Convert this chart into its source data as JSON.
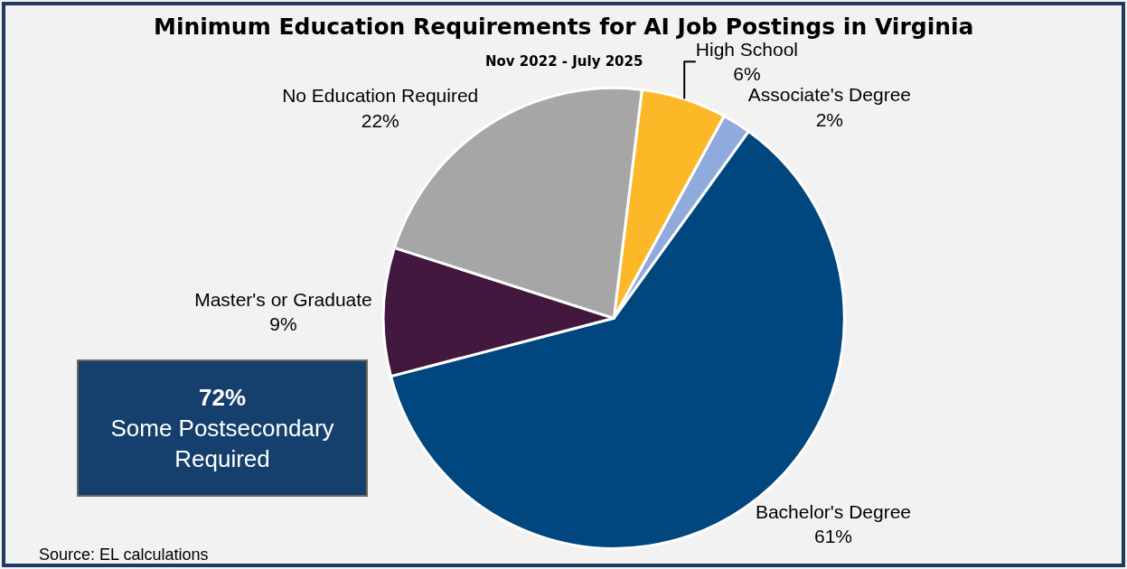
{
  "chart_data": {
    "type": "pie",
    "title": "Minimum Education Requirements for AI Job Postings in Virginia",
    "subtitle": "Nov 2022 - July 2025",
    "categories": [
      "High School",
      "Associate's Degree",
      "Bachelor's Degree",
      "Master's or Graduate",
      "No Education Required"
    ],
    "values": [
      6,
      2,
      61,
      9,
      22
    ],
    "colors": [
      "#fdb827",
      "#8faadc",
      "#00467f",
      "#42183f",
      "#a6a6a6"
    ],
    "annotations": [
      "72% Some Postsecondary Required",
      "Source: EL calculations"
    ],
    "value_labels": [
      "6%",
      "2%",
      "61%",
      "9%",
      "22%"
    ],
    "legend": false
  }
}
